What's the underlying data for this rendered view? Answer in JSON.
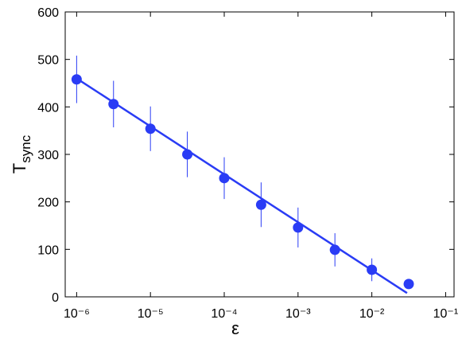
{
  "chart_data": {
    "type": "scatter",
    "xlabel": "ε",
    "ylabel": "T",
    "ylabel_subscript": "sync",
    "xscale": "log",
    "xlim": [
      7e-07,
      0.13
    ],
    "xticks": [
      {
        "value": 1e-06,
        "label": "10⁻⁶"
      },
      {
        "value": 1e-05,
        "label": "10⁻⁵"
      },
      {
        "value": 0.0001,
        "label": "10⁻⁴"
      },
      {
        "value": 0.001,
        "label": "10⁻³"
      },
      {
        "value": 0.01,
        "label": "10⁻²"
      },
      {
        "value": 0.1,
        "label": "10⁻¹"
      }
    ],
    "ylim": [
      0,
      600
    ],
    "yticks": [
      0,
      100,
      200,
      300,
      400,
      500,
      600
    ],
    "series": [
      {
        "color": "#2a3cf5",
        "x": [
          1e-06,
          3.16e-06,
          1e-05,
          3.16e-05,
          0.0001,
          0.000316,
          0.001,
          0.00316,
          0.01,
          0.0316
        ],
        "values": [
          458,
          406,
          354,
          300,
          250,
          194,
          146,
          99,
          57,
          27
        ],
        "errors": [
          50,
          49,
          47,
          48,
          44,
          47,
          42,
          35,
          24,
          null
        ]
      }
    ],
    "fit": {
      "color": "#2a3cf5",
      "x": [
        1e-06,
        0.03
      ],
      "values": [
        460,
        8
      ]
    }
  }
}
